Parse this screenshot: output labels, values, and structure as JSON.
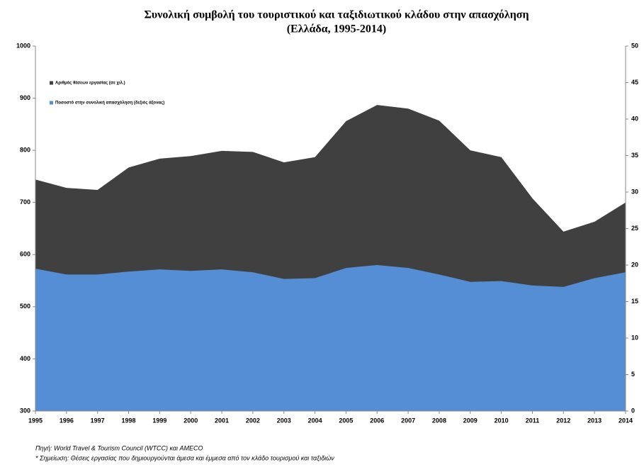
{
  "chart_data": {
    "type": "area",
    "title": [
      "Συνολική συμβολή του τουριστικού και ταξιδιωτικού κλάδου στην απασχόληση",
      "(Ελλάδα, 1995-2014)"
    ],
    "categories": [
      "1995",
      "1996",
      "1997",
      "1998",
      "1999",
      "2000",
      "2001",
      "2002",
      "2003",
      "2004",
      "2005",
      "2006",
      "2007",
      "2008",
      "2009",
      "2010",
      "2011",
      "2012",
      "2013",
      "2014"
    ],
    "series": [
      {
        "name": "Αριθμός θέσεων εργασίας (σε χιλ.)",
        "color": "#404040",
        "axis": "y",
        "values": [
          744,
          728,
          724,
          767,
          784,
          789,
          799,
          797,
          777,
          787,
          856,
          887,
          880,
          857,
          800,
          787,
          708,
          644,
          663,
          700
        ]
      },
      {
        "name": "Ποσοστό στην συνολική απασχόληση (δεξιός άξονας)",
        "color": "#558ed5",
        "axis": "y2",
        "values": [
          19.5,
          18.7,
          18.7,
          19.1,
          19.4,
          19.2,
          19.4,
          19.0,
          18.1,
          18.2,
          19.6,
          20.0,
          19.6,
          18.7,
          17.7,
          17.8,
          17.2,
          17.0,
          18.2,
          19.0
        ]
      }
    ],
    "ylim": [
      300,
      1000
    ],
    "yticks": [
      300,
      400,
      500,
      600,
      700,
      800,
      900,
      1000
    ],
    "y2lim": [
      0,
      50
    ],
    "y2ticks": [
      0,
      5,
      10,
      15,
      20,
      25,
      30,
      35,
      40,
      45,
      50
    ],
    "legend": "top-left",
    "footnotes": [
      "Πηγή: World Travel & Tourism Council (WTCC) και AMECO",
      "* Σημείωση: Θέσεις εργασίας που δημιουργούνται άμεσα και έμμεσα από τον κλάδο τουρισμού και ταξιδιών"
    ]
  }
}
